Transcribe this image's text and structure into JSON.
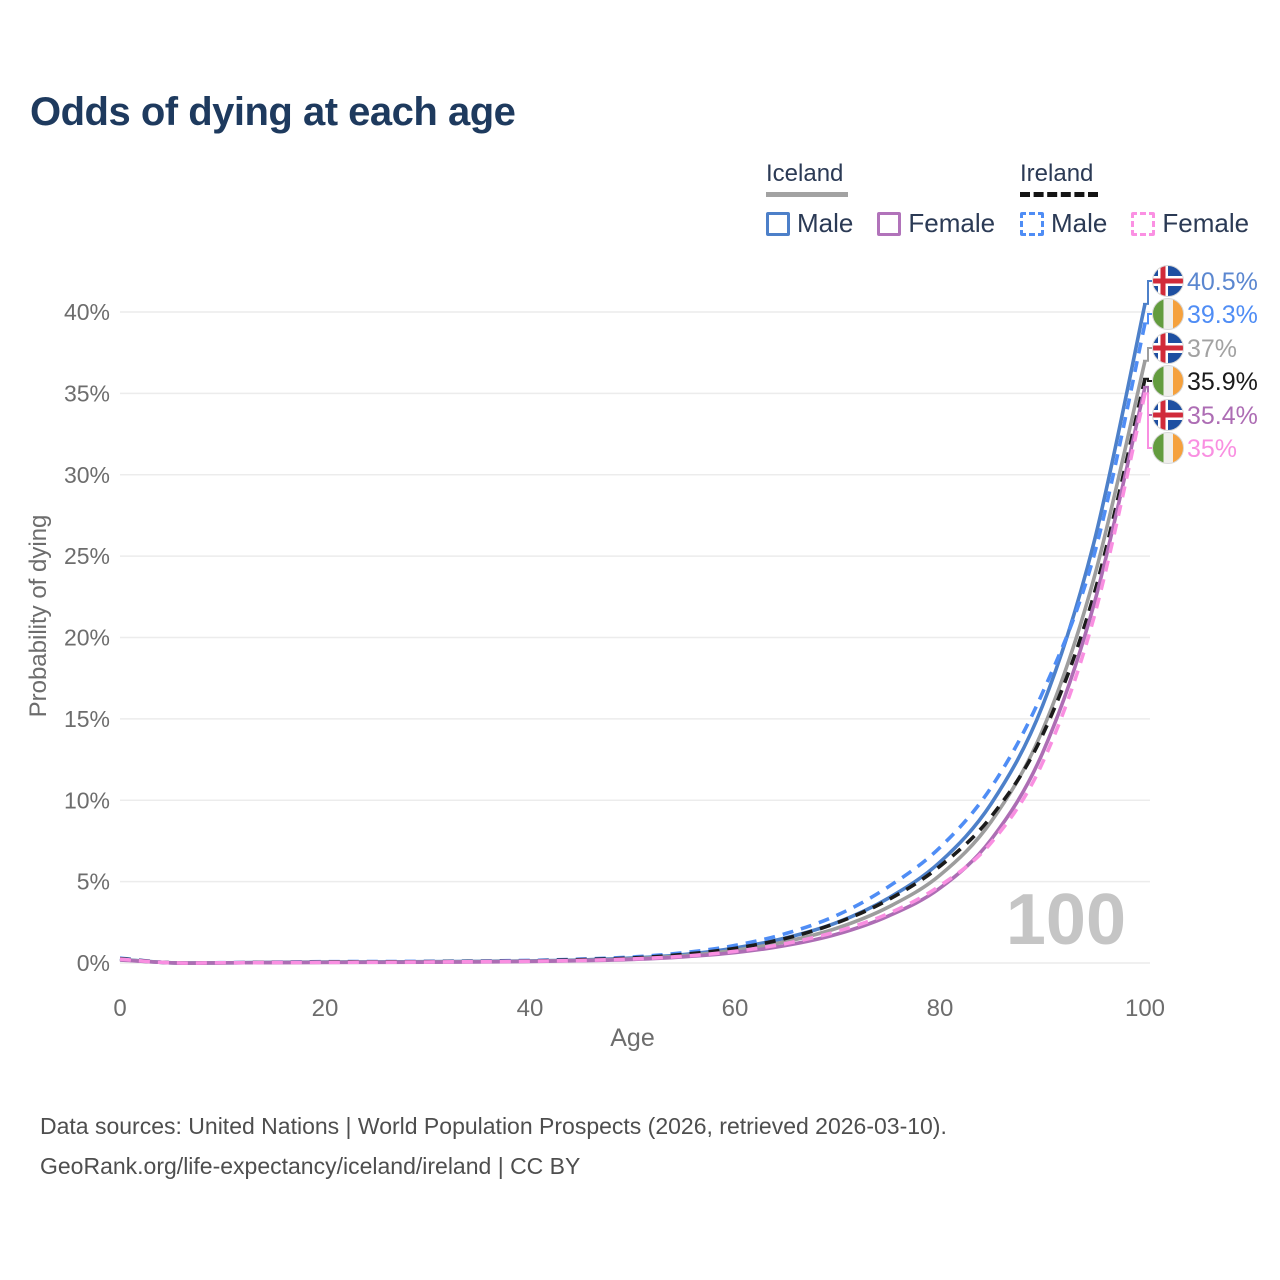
{
  "page": {
    "title": "Odds of dying at each age",
    "footer_line1": "Data sources: United Nations | World Population Prospects (2026, retrieved 2026-03-10).",
    "footer_line2": "GeoRank.org/life-expectancy/iceland/ireland | CC BY"
  },
  "legend": {
    "groups": [
      {
        "label": "Iceland",
        "underline_style": "solid",
        "underline_color": "#a2a2a2",
        "items": [
          {
            "label": "Male",
            "color": "#4d80c9",
            "dashed": false
          },
          {
            "label": "Female",
            "color": "#b173ba",
            "dashed": false
          }
        ]
      },
      {
        "label": "Ireland",
        "underline_style": "dashed",
        "underline_color": "#141414",
        "items": [
          {
            "label": "Male",
            "color": "#4f8df5",
            "dashed": true
          },
          {
            "label": "Female",
            "color": "#fb90e3",
            "dashed": true
          }
        ]
      }
    ]
  },
  "chart_data": {
    "type": "line",
    "title": "Odds of dying at each age",
    "xlabel": "Age",
    "ylabel": "Probability of dying",
    "xlim": [
      0,
      100
    ],
    "ylim": [
      0,
      42
    ],
    "grid": true,
    "x_ticks": [
      0,
      20,
      40,
      60,
      80,
      100
    ],
    "y_ticks": [
      {
        "value": 0,
        "label": "0%"
      },
      {
        "value": 5,
        "label": "5%"
      },
      {
        "value": 10,
        "label": "10%"
      },
      {
        "value": 15,
        "label": "15%"
      },
      {
        "value": 20,
        "label": "20%"
      },
      {
        "value": 25,
        "label": "25%"
      },
      {
        "value": 30,
        "label": "30%"
      },
      {
        "value": 35,
        "label": "35%"
      },
      {
        "value": 40,
        "label": "40%"
      }
    ],
    "x": [
      0,
      5,
      10,
      15,
      20,
      25,
      30,
      35,
      40,
      45,
      50,
      55,
      60,
      65,
      70,
      75,
      80,
      85,
      90,
      95,
      100
    ],
    "series": [
      {
        "name": "Iceland Male",
        "country": "iceland",
        "sex": "male",
        "style": "solid",
        "color": "#4d80c9",
        "label_color": "#5b87d0",
        "end_label": "40.5%",
        "end_value": 40.5,
        "values": [
          0.23,
          0.01,
          0.01,
          0.04,
          0.06,
          0.07,
          0.08,
          0.1,
          0.13,
          0.19,
          0.3,
          0.52,
          0.92,
          1.55,
          2.5,
          4.0,
          6.2,
          9.8,
          15.8,
          25.8,
          40.5
        ]
      },
      {
        "name": "Ireland Male",
        "country": "ireland",
        "sex": "male",
        "style": "dashed",
        "color": "#4f8df5",
        "label_color": "#4f8df5",
        "end_label": "39.3%",
        "end_value": 39.3,
        "values": [
          0.3,
          0.01,
          0.02,
          0.05,
          0.08,
          0.09,
          0.1,
          0.12,
          0.16,
          0.24,
          0.37,
          0.63,
          1.08,
          1.82,
          2.95,
          4.7,
          7.1,
          10.8,
          16.6,
          25.0,
          39.3
        ]
      },
      {
        "name": "Iceland",
        "country": "iceland",
        "sex": "both",
        "style": "solid",
        "color": "#9d9d9d",
        "label_color": "#a2a2a2",
        "end_label": "37%",
        "end_value": 37.0,
        "values": [
          0.21,
          0.01,
          0.01,
          0.03,
          0.05,
          0.06,
          0.07,
          0.08,
          0.11,
          0.16,
          0.26,
          0.45,
          0.78,
          1.32,
          2.15,
          3.45,
          5.4,
          8.7,
          14.3,
          23.6,
          37.0
        ]
      },
      {
        "name": "Ireland",
        "country": "ireland",
        "sex": "both",
        "style": "dashed",
        "color": "#1b1b1b",
        "label_color": "#1b1b1b",
        "end_label": "35.9%",
        "end_value": 35.9,
        "values": [
          0.27,
          0.01,
          0.01,
          0.04,
          0.06,
          0.07,
          0.08,
          0.1,
          0.13,
          0.2,
          0.31,
          0.53,
          0.9,
          1.52,
          2.48,
          3.9,
          5.95,
          9.0,
          14.0,
          22.6,
          35.9
        ]
      },
      {
        "name": "Iceland Female",
        "country": "iceland",
        "sex": "female",
        "style": "solid",
        "color": "#ad6db4",
        "label_color": "#ad6db4",
        "end_label": "35.4%",
        "end_value": 35.4,
        "values": [
          0.19,
          0.01,
          0.01,
          0.02,
          0.03,
          0.04,
          0.05,
          0.07,
          0.09,
          0.14,
          0.22,
          0.38,
          0.64,
          1.08,
          1.78,
          2.9,
          4.6,
          7.6,
          12.9,
          22.0,
          35.4
        ]
      },
      {
        "name": "Ireland Female",
        "country": "ireland",
        "sex": "female",
        "style": "dashed",
        "color": "#f98fe1",
        "label_color": "#f98fe1",
        "end_label": "35%",
        "end_value": 35.0,
        "values": [
          0.24,
          0.01,
          0.01,
          0.03,
          0.04,
          0.05,
          0.06,
          0.08,
          0.11,
          0.16,
          0.25,
          0.42,
          0.72,
          1.2,
          1.95,
          3.05,
          4.75,
          7.4,
          12.3,
          21.2,
          35.0
        ]
      }
    ],
    "annotation": {
      "text": "100",
      "color": "#c5c5c5"
    },
    "flag_colors": {
      "iceland": {
        "blue": "#1e4fa1",
        "white": "#ffffff",
        "red": "#d12b3a"
      },
      "ireland": {
        "green": "#639c3e",
        "white": "#f0efec",
        "orange": "#f5a13d"
      }
    },
    "axis_color": "#6d6d6d",
    "grid_color": "#ececec"
  }
}
